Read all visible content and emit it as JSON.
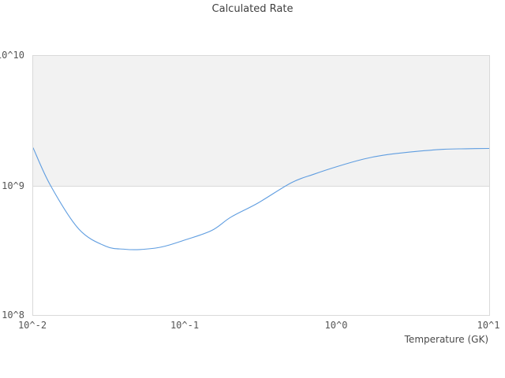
{
  "title": "Calculated Rate",
  "colors": {
    "line": "#5f9de0",
    "band_fill": "#f2f2f2",
    "frame": "#d9d9d9",
    "title_text": "#3f3f3f",
    "tick_text": "#555555",
    "label_text": "#4a4a4a"
  },
  "axes": {
    "x": {
      "label": "Temperature (GK)",
      "ticks": [
        "10^-2",
        "10^-1",
        "10^0",
        "10^1"
      ]
    },
    "y": {
      "ticks": [
        "10^8",
        "10^9",
        "10^10"
      ]
    }
  },
  "chart_data": {
    "type": "line",
    "title": "Calculated Rate",
    "xlabel": "Temperature (GK)",
    "ylabel": "",
    "x_scale": "log",
    "y_scale": "log",
    "xlim": [
      0.01,
      10
    ],
    "ylim": [
      100000000.0,
      10000000000.0
    ],
    "x_tick_values": [
      0.01,
      0.1,
      1,
      10
    ],
    "x_tick_labels": [
      "10^-2",
      "10^-1",
      "10^0",
      "10^1"
    ],
    "y_tick_values": [
      100000000.0,
      1000000000.0,
      10000000000.0
    ],
    "y_tick_labels": [
      "10^8",
      "10^9",
      "10^10"
    ],
    "grid": false,
    "legend": false,
    "shaded_band": {
      "y_from": 1000000000.0,
      "y_to": 10000000000.0
    },
    "series": [
      {
        "name": "calculated-rate",
        "x": [
          0.01,
          0.013,
          0.02,
          0.03,
          0.04,
          0.05,
          0.07,
          0.1,
          0.15,
          0.2,
          0.3,
          0.5,
          0.7,
          1.0,
          1.5,
          2.0,
          3.0,
          5.0,
          7.0,
          10.0
        ],
        "y": [
          1950000000.0,
          1000000000.0,
          460000000.0,
          340000000.0,
          322000000.0,
          320000000.0,
          335000000.0,
          380000000.0,
          450000000.0,
          570000000.0,
          730000000.0,
          1050000000.0,
          1220000000.0,
          1400000000.0,
          1600000000.0,
          1710000000.0,
          1810000000.0,
          1900000000.0,
          1920000000.0,
          1930000000.0
        ]
      }
    ]
  }
}
